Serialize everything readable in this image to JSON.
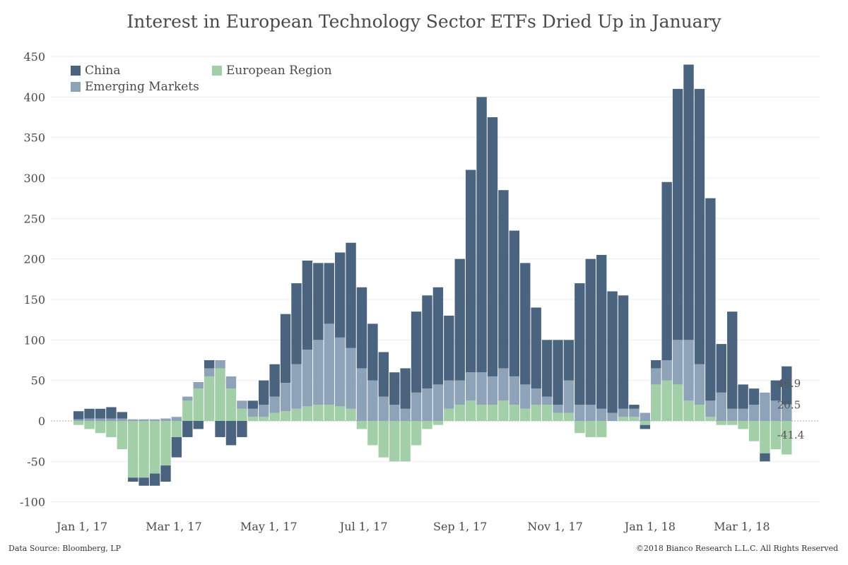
{
  "chart_data": {
    "type": "bar",
    "stacked": true,
    "title": "Interest in European Technology Sector ETFs Dried Up in January",
    "xlabel": "",
    "ylabel": "",
    "ylim": [
      -110,
      460
    ],
    "y_ticks": [
      450,
      400,
      350,
      300,
      250,
      200,
      150,
      100,
      50,
      0,
      -50,
      -100
    ],
    "x_tick_labels": [
      "Jan 1, 17",
      "Mar 1, 17",
      "May 1, 17",
      "Jul 1, 17",
      "Sep 1, 17",
      "Nov 1, 17",
      "Jan 1, 18",
      "Mar 1, 18"
    ],
    "grid": true,
    "legend_position": "top-left",
    "colors": {
      "china": "#4a6480",
      "emerging": "#8fa3b8",
      "european": "#a2cfa8"
    },
    "legend": {
      "china": "China",
      "emerging": "Emerging Markets",
      "european": "European Region"
    },
    "end_labels": [
      "46.9",
      "20.5",
      "-41.4"
    ],
    "x": [
      "2016-12-23",
      "2016-12-30",
      "2017-01-06",
      "2017-01-13",
      "2017-01-20",
      "2017-01-27",
      "2017-02-03",
      "2017-02-10",
      "2017-02-17",
      "2017-02-24",
      "2017-03-03",
      "2017-03-10",
      "2017-03-17",
      "2017-03-24",
      "2017-03-31",
      "2017-04-07",
      "2017-04-14",
      "2017-04-21",
      "2017-04-28",
      "2017-05-05",
      "2017-05-12",
      "2017-05-19",
      "2017-05-26",
      "2017-06-02",
      "2017-06-09",
      "2017-06-16",
      "2017-06-23",
      "2017-06-30",
      "2017-07-07",
      "2017-07-14",
      "2017-07-21",
      "2017-07-28",
      "2017-08-04",
      "2017-08-11",
      "2017-08-18",
      "2017-08-25",
      "2017-09-01",
      "2017-09-08",
      "2017-09-15",
      "2017-09-22",
      "2017-09-29",
      "2017-10-06",
      "2017-10-13",
      "2017-10-20",
      "2017-10-27",
      "2017-11-03",
      "2017-11-10",
      "2017-11-17",
      "2017-11-24",
      "2017-12-01",
      "2017-12-08",
      "2017-12-15",
      "2017-12-22",
      "2017-12-29",
      "2018-01-05",
      "2018-01-12",
      "2018-01-19",
      "2018-01-26",
      "2018-02-02",
      "2018-02-09",
      "2018-02-16",
      "2018-02-23",
      "2018-03-02",
      "2018-03-09",
      "2018-03-16",
      "2018-03-23",
      "2018-03-30"
    ],
    "series": [
      {
        "name": "European Region",
        "values": [
          0,
          -5,
          -10,
          -15,
          -20,
          -35,
          -70,
          -70,
          -65,
          -55,
          -20,
          25,
          40,
          55,
          65,
          40,
          15,
          5,
          5,
          10,
          12,
          15,
          18,
          20,
          20,
          18,
          15,
          -10,
          -30,
          -45,
          -50,
          -50,
          -30,
          -10,
          -5,
          15,
          20,
          25,
          20,
          20,
          25,
          20,
          15,
          20,
          20,
          10,
          10,
          -15,
          -20,
          -20,
          0,
          5,
          5,
          -5,
          45,
          50,
          45,
          25,
          20,
          5,
          -5,
          -5,
          -10,
          -25,
          -40,
          -35,
          -41.4
        ]
      },
      {
        "name": "Emerging Markets",
        "values": [
          0,
          2,
          3,
          3,
          3,
          3,
          2,
          2,
          2,
          3,
          5,
          5,
          8,
          10,
          10,
          15,
          10,
          10,
          15,
          20,
          35,
          55,
          70,
          80,
          100,
          85,
          75,
          65,
          50,
          30,
          20,
          15,
          35,
          40,
          45,
          35,
          30,
          35,
          40,
          35,
          40,
          35,
          30,
          20,
          10,
          10,
          40,
          20,
          20,
          15,
          10,
          10,
          10,
          10,
          20,
          25,
          55,
          75,
          50,
          20,
          35,
          15,
          15,
          20,
          35,
          25,
          20.5
        ]
      },
      {
        "name": "China",
        "values": [
          0,
          10,
          12,
          12,
          14,
          8,
          -5,
          -10,
          -15,
          -20,
          -25,
          -20,
          -10,
          10,
          -20,
          -30,
          -20,
          10,
          30,
          40,
          85,
          100,
          110,
          95,
          75,
          105,
          130,
          100,
          70,
          55,
          40,
          50,
          100,
          115,
          120,
          80,
          150,
          250,
          340,
          320,
          220,
          180,
          150,
          100,
          70,
          80,
          50,
          150,
          180,
          190,
          150,
          140,
          5,
          -5,
          10,
          220,
          310,
          340,
          340,
          250,
          60,
          120,
          30,
          20,
          -10,
          25,
          46.9
        ]
      }
    ]
  },
  "footer": {
    "source": "Data Source: Bloomberg, LP",
    "copyright": "©2018 Bianco Research L.L.C. All Rights Reserved"
  }
}
